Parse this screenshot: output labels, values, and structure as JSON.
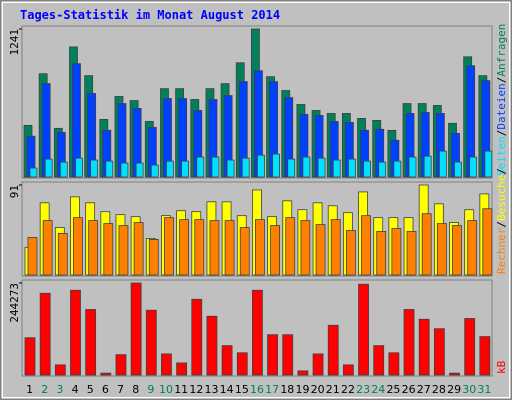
{
  "chart_data": [
    {
      "type": "bar",
      "title": "Tages-Statistik im Monat August 2014",
      "ylim": [
        0,
        1241
      ],
      "yticks": [
        1241
      ],
      "legend_separator": "/",
      "series": [
        {
          "name": "Anfragen",
          "color": "#00805C",
          "values": [
            433,
            866,
            408,
            1091,
            850,
            483,
            675,
            641,
            466,
            741,
            741,
            650,
            741,
            783,
            958,
            1241,
            841,
            725,
            608,
            558,
            533,
            533,
            491,
            475,
            391,
            616,
            616,
            600,
            450,
            1008,
            850
          ]
        },
        {
          "name": "Dateien",
          "color": "#0040FF",
          "values": [
            342,
            783,
            375,
            950,
            700,
            392,
            616,
            575,
            416,
            658,
            658,
            558,
            650,
            683,
            800,
            891,
            800,
            666,
            525,
            516,
            466,
            458,
            392,
            400,
            308,
            533,
            541,
            533,
            366,
            933,
            808
          ]
        },
        {
          "name": "Seiten",
          "color": "#00E0FF",
          "values": [
            75,
            150,
            125,
            158,
            142,
            133,
            117,
            117,
            100,
            133,
            133,
            167,
            167,
            142,
            158,
            183,
            192,
            150,
            167,
            158,
            142,
            150,
            133,
            125,
            133,
            167,
            175,
            217,
            125,
            167,
            217
          ]
        }
      ]
    },
    {
      "type": "bar",
      "ylim": [
        0,
        91
      ],
      "yticks": [
        91
      ],
      "series": [
        {
          "name": "Besuche",
          "color": "#FFFF00",
          "values": [
            28,
            73,
            48,
            79,
            73,
            64,
            61,
            59,
            37,
            60,
            65,
            64,
            74,
            74,
            60,
            86,
            59,
            75,
            66,
            73,
            70,
            63,
            84,
            58,
            58,
            58,
            91,
            72,
            53,
            66,
            82
          ]
        },
        {
          "name": "Rechner",
          "color": "#FF8000",
          "values": [
            38,
            55,
            42,
            58,
            55,
            52,
            50,
            53,
            36,
            58,
            56,
            56,
            55,
            55,
            48,
            56,
            50,
            58,
            55,
            51,
            56,
            45,
            60,
            44,
            47,
            44,
            62,
            52,
            50,
            55,
            67
          ]
        }
      ]
    },
    {
      "type": "bar",
      "ylim": [
        0,
        244273
      ],
      "yticks": [
        244273
      ],
      "categories": [
        "1",
        "2",
        "3",
        "4",
        "5",
        "6",
        "7",
        "8",
        "9",
        "10",
        "11",
        "12",
        "13",
        "14",
        "15",
        "16",
        "17",
        "18",
        "19",
        "20",
        "21",
        "22",
        "23",
        "24",
        "25",
        "26",
        "27",
        "28",
        "29",
        "30",
        "31"
      ],
      "category_colors": [
        "#000000",
        "#00805C",
        "#00805C",
        "#000000",
        "#000000",
        "#000000",
        "#000000",
        "#000000",
        "#00805C",
        "#00805C",
        "#000000",
        "#000000",
        "#000000",
        "#000000",
        "#000000",
        "#00805C",
        "#00805C",
        "#000000",
        "#000000",
        "#000000",
        "#000000",
        "#000000",
        "#00805C",
        "#00805C",
        "#000000",
        "#000000",
        "#000000",
        "#000000",
        "#000000",
        "#00805C",
        "#00805C"
      ],
      "series": [
        {
          "name": "kB",
          "color": "#FF0000",
          "values": [
            99000,
            217000,
            27000,
            225000,
            174000,
            5000,
            54000,
            244273,
            172000,
            56000,
            32000,
            201000,
            156000,
            78000,
            59000,
            225000,
            107000,
            107000,
            11000,
            56000,
            132000,
            27000,
            241000,
            78000,
            59000,
            174000,
            148000,
            123000,
            5000,
            150000,
            102000
          ]
        }
      ]
    }
  ]
}
